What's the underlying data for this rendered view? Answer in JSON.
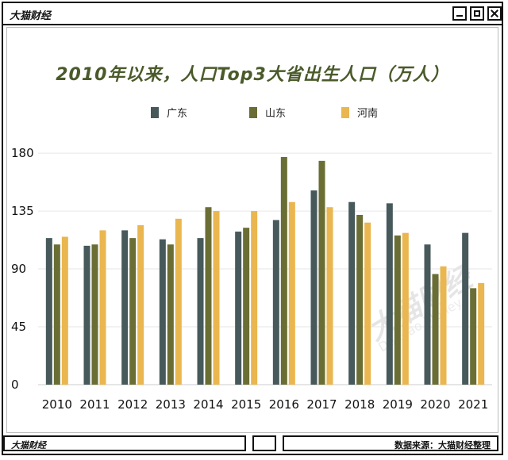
{
  "window": {
    "title": "大猫财经"
  },
  "footer": {
    "left_label": "大猫财经",
    "source": "数据来源：大猫财经整理"
  },
  "watermark": {
    "main": "大猫财经",
    "sub": "Da Mao Money"
  },
  "colors": {
    "guangdong": "#47595b",
    "shandong": "#6a6e34",
    "henan": "#eab64f"
  },
  "chart_data": {
    "type": "bar",
    "title": "2010年以来，人口Top3大省出生人口（万人）",
    "categories": [
      "2010",
      "2011",
      "2012",
      "2013",
      "2014",
      "2015",
      "2016",
      "2017",
      "2018",
      "2019",
      "2020",
      "2021"
    ],
    "series": [
      {
        "name": "广东",
        "values": [
          114,
          108,
          120,
          113,
          114,
          119,
          128,
          151,
          142,
          141,
          109,
          118
        ]
      },
      {
        "name": "山东",
        "values": [
          109,
          109,
          114,
          109,
          138,
          122,
          177,
          174,
          132,
          116,
          86,
          75
        ]
      },
      {
        "name": "河南",
        "values": [
          115,
          120,
          124,
          129,
          135,
          135,
          142,
          138,
          126,
          118,
          92,
          79
        ]
      }
    ],
    "yticks": [
      0,
      45,
      90,
      135,
      180
    ],
    "ylim": [
      0,
      185
    ],
    "grid": true,
    "legend_position": "top-center"
  }
}
